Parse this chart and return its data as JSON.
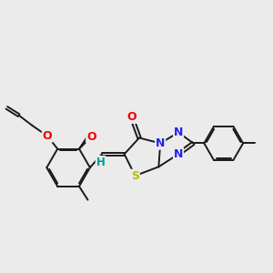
{
  "bg_color": "#ebebeb",
  "bond_color": "#1a1a1a",
  "bond_lw": 1.4,
  "dbl_off": 0.06,
  "colors": {
    "O": "#ee0000",
    "N": "#2222ee",
    "S": "#bbbb00",
    "H": "#009999",
    "C": "#1a1a1a"
  },
  "fs": 9
}
